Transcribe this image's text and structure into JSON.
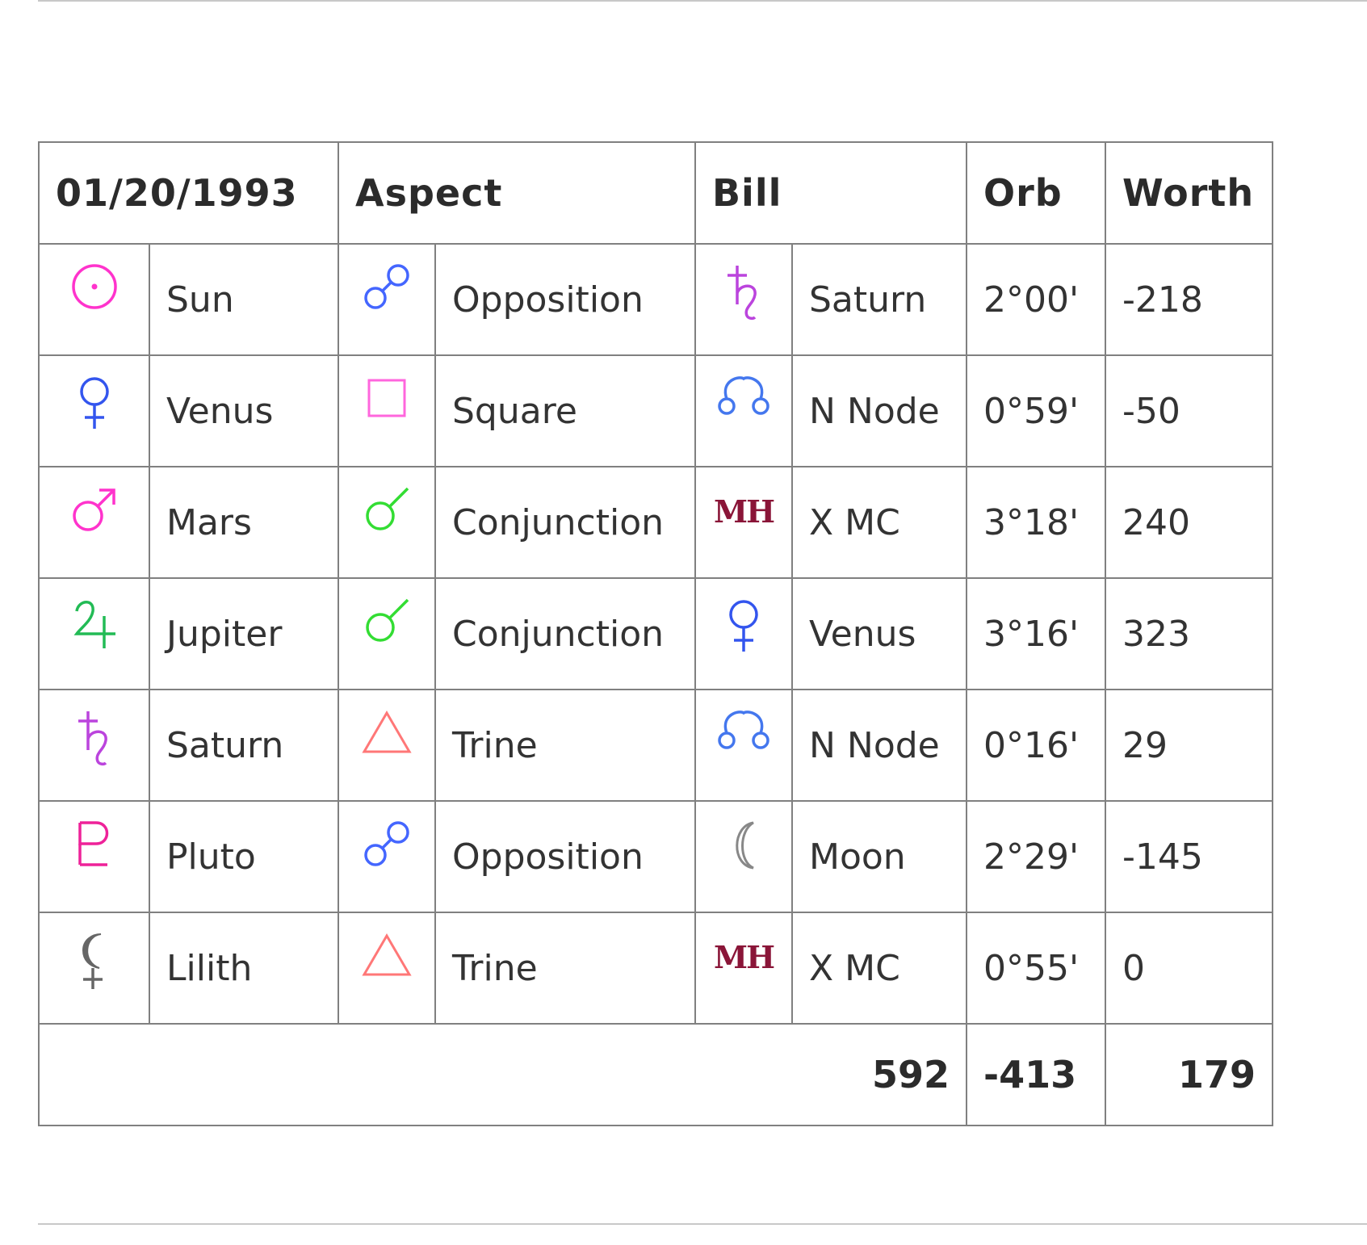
{
  "header": {
    "date": "01/20/1993",
    "aspect": "Aspect",
    "person": "Bill",
    "orb": "Orb",
    "worth": "Worth"
  },
  "rows": [
    {
      "planet": {
        "icon": "sun-icon",
        "label": "Sun",
        "color": "#ff33cc"
      },
      "aspect": {
        "icon": "opposition-icon",
        "label": "Opposition",
        "color": "#4466ff"
      },
      "target": {
        "icon": "saturn-icon",
        "label": "Saturn",
        "color": "#bb44dd"
      },
      "orb": "2°00'",
      "worth": "-218"
    },
    {
      "planet": {
        "icon": "venus-icon",
        "label": "Venus",
        "color": "#3355ee"
      },
      "aspect": {
        "icon": "square-icon",
        "label": "Square",
        "color": "#ff66dd"
      },
      "target": {
        "icon": "north-node-icon",
        "label": "N Node",
        "color": "#4477ee"
      },
      "orb": "0°59'",
      "worth": "-50"
    },
    {
      "planet": {
        "icon": "mars-icon",
        "label": "Mars",
        "color": "#ff33cc"
      },
      "aspect": {
        "icon": "conjunction-icon",
        "label": "Conjunction",
        "color": "#33dd33"
      },
      "target": {
        "icon": "midheaven-icon",
        "label": "X MC",
        "text_icon": "MH",
        "color": "#8a1538"
      },
      "orb": "3°18'",
      "worth": "240"
    },
    {
      "planet": {
        "icon": "jupiter-icon",
        "label": "Jupiter",
        "color": "#22bb55"
      },
      "aspect": {
        "icon": "conjunction-icon",
        "label": "Conjunction",
        "color": "#33dd33"
      },
      "target": {
        "icon": "venus-icon",
        "label": "Venus",
        "color": "#3355ee"
      },
      "orb": "3°16'",
      "worth": "323"
    },
    {
      "planet": {
        "icon": "saturn-icon",
        "label": "Saturn",
        "color": "#bb44dd"
      },
      "aspect": {
        "icon": "trine-icon",
        "label": "Trine",
        "color": "#ff7777"
      },
      "target": {
        "icon": "north-node-icon",
        "label": "N Node",
        "color": "#4477ee"
      },
      "orb": "0°16'",
      "worth": "29"
    },
    {
      "planet": {
        "icon": "pluto-icon",
        "label": "Pluto",
        "color": "#ee2299"
      },
      "aspect": {
        "icon": "opposition-icon",
        "label": "Opposition",
        "color": "#4466ff"
      },
      "target": {
        "icon": "moon-icon",
        "label": "Moon",
        "color": "#888888"
      },
      "orb": "2°29'",
      "worth": "-145"
    },
    {
      "planet": {
        "icon": "lilith-icon",
        "label": "Lilith",
        "color": "#666666"
      },
      "aspect": {
        "icon": "trine-icon",
        "label": "Trine",
        "color": "#ff7777"
      },
      "target": {
        "icon": "midheaven-icon",
        "label": "X MC",
        "text_icon": "MH",
        "color": "#8a1538"
      },
      "orb": "0°55'",
      "worth": "0"
    }
  ],
  "totals": {
    "positive": "592",
    "negative": "-413",
    "net": "179"
  }
}
